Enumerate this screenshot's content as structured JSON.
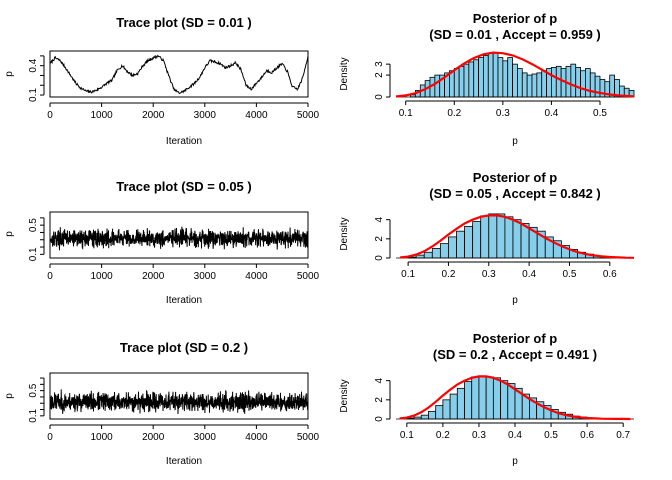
{
  "chart_data": [
    {
      "type": "line",
      "title": "Trace plot (SD = 0.01 )",
      "xlabel": "Iteration",
      "ylabel": "p",
      "xlim": [
        0,
        5000
      ],
      "ylim": [
        0.08,
        0.55
      ],
      "xticks": [
        0,
        1000,
        2000,
        3000,
        4000,
        5000
      ],
      "yticks": [
        0.1,
        0.4
      ],
      "yticks_minor": [
        0.1,
        0.2,
        0.3,
        0.4,
        0.5
      ],
      "ytick_labels": [
        "0.1",
        "0.4"
      ],
      "sd": 0.01,
      "series": [
        {
          "x": [
            0,
            100,
            200,
            300,
            400,
            500,
            600,
            700,
            800,
            900,
            1000,
            1100,
            1200,
            1300,
            1400,
            1500,
            1600,
            1700,
            1800,
            1900,
            2000,
            2100,
            2200,
            2300,
            2400,
            2500,
            2600,
            2700,
            2800,
            2900,
            3000,
            3100,
            3200,
            3300,
            3400,
            3500,
            3600,
            3700,
            3800,
            3900,
            4000,
            4100,
            4200,
            4300,
            4400,
            4500,
            4600,
            4700,
            4800,
            4900,
            5000
          ],
          "values": [
            0.42,
            0.48,
            0.45,
            0.38,
            0.3,
            0.22,
            0.17,
            0.14,
            0.13,
            0.15,
            0.18,
            0.22,
            0.25,
            0.35,
            0.4,
            0.34,
            0.3,
            0.32,
            0.4,
            0.45,
            0.48,
            0.5,
            0.45,
            0.3,
            0.16,
            0.12,
            0.14,
            0.18,
            0.22,
            0.28,
            0.38,
            0.45,
            0.44,
            0.42,
            0.38,
            0.4,
            0.43,
            0.36,
            0.2,
            0.16,
            0.22,
            0.28,
            0.35,
            0.33,
            0.38,
            0.42,
            0.34,
            0.18,
            0.16,
            0.28,
            0.5
          ]
        }
      ]
    },
    {
      "type": "bar",
      "title": "Posterior of p",
      "subtitle": "(SD = 0.01 , Accept = 0.959 )",
      "xlabel": "p",
      "ylabel": "Density",
      "xlim": [
        0.08,
        0.57
      ],
      "ylim": [
        0,
        4.2
      ],
      "xticks": [
        0.1,
        0.2,
        0.3,
        0.4,
        0.5
      ],
      "yticks": [
        0,
        2,
        3
      ],
      "ytick_labels": [
        "0",
        "2",
        "3"
      ],
      "bin_edges_start": 0.11,
      "bin_width": 0.01,
      "sd": 0.01,
      "accept": 0.959,
      "values": [
        0.2,
        0.6,
        1.1,
        1.5,
        1.8,
        2.0,
        2.0,
        2.2,
        2.4,
        2.6,
        2.8,
        3.0,
        3.2,
        3.4,
        3.6,
        3.8,
        4.0,
        4.0,
        3.6,
        3.3,
        3.6,
        3.0,
        2.6,
        2.2,
        2.0,
        2.1,
        2.2,
        2.4,
        2.6,
        2.7,
        2.8,
        2.6,
        2.8,
        3.0,
        2.7,
        2.4,
        2.6,
        2.2,
        1.9,
        1.6,
        1.4,
        2.0,
        1.6,
        1.0,
        0.8,
        0.6
      ],
      "density_curve": {
        "color": "#ff0000",
        "x": [
          0.08,
          0.1,
          0.12,
          0.14,
          0.16,
          0.18,
          0.2,
          0.22,
          0.24,
          0.26,
          0.28,
          0.3,
          0.32,
          0.34,
          0.36,
          0.38,
          0.4,
          0.42,
          0.44,
          0.46,
          0.48,
          0.5,
          0.52,
          0.54,
          0.56,
          0.57
        ],
        "y": [
          0.05,
          0.15,
          0.35,
          0.7,
          1.2,
          1.8,
          2.45,
          3.05,
          3.55,
          3.9,
          4.05,
          4.0,
          3.8,
          3.45,
          3.0,
          2.5,
          2.0,
          1.55,
          1.15,
          0.8,
          0.55,
          0.37,
          0.23,
          0.14,
          0.08,
          0.06
        ]
      },
      "bar_color": "#87ceeb"
    },
    {
      "type": "line",
      "title": "Trace plot (SD = 0.05 )",
      "xlabel": "Iteration",
      "ylabel": "p",
      "xlim": [
        0,
        5000
      ],
      "ylim": [
        0.05,
        0.68
      ],
      "xticks": [
        0,
        1000,
        2000,
        3000,
        4000,
        5000
      ],
      "yticks": [
        0.1,
        0.5
      ],
      "yticks_minor": [
        0.1,
        0.2,
        0.3,
        0.4,
        0.5,
        0.6
      ],
      "ytick_labels": [
        "0.1",
        "0.5"
      ],
      "sd": 0.05,
      "series": [
        {
          "noise_center": 0.32,
          "noise_spread": 0.1,
          "n_points": 1200
        }
      ]
    },
    {
      "type": "bar",
      "title": "Posterior of p",
      "subtitle": "(SD = 0.05 , Accept = 0.842 )",
      "xlabel": "p",
      "ylabel": "Density",
      "xlim": [
        0.07,
        0.66
      ],
      "ylim": [
        0,
        4.8
      ],
      "xticks": [
        0.1,
        0.2,
        0.3,
        0.4,
        0.5,
        0.6
      ],
      "yticks": [
        0,
        2,
        4
      ],
      "ytick_labels": [
        "0",
        "2",
        "4"
      ],
      "bin_edges_start": 0.1,
      "bin_width": 0.02,
      "sd": 0.05,
      "accept": 0.842,
      "values": [
        0.1,
        0.3,
        0.6,
        1.0,
        1.5,
        2.2,
        2.8,
        3.3,
        3.8,
        4.4,
        4.6,
        4.6,
        4.3,
        4.0,
        3.6,
        3.2,
        2.8,
        2.2,
        1.8,
        1.3,
        0.9,
        0.6,
        0.4,
        0.2,
        0.15,
        0.1
      ],
      "density_curve": {
        "color": "#ff0000",
        "x": [
          0.08,
          0.1,
          0.12,
          0.14,
          0.16,
          0.18,
          0.2,
          0.22,
          0.24,
          0.26,
          0.28,
          0.3,
          0.32,
          0.34,
          0.36,
          0.38,
          0.4,
          0.42,
          0.44,
          0.46,
          0.48,
          0.5,
          0.52,
          0.54,
          0.56,
          0.58,
          0.6,
          0.62,
          0.64,
          0.66
        ],
        "y": [
          0.05,
          0.15,
          0.35,
          0.7,
          1.2,
          1.8,
          2.45,
          3.05,
          3.6,
          4.0,
          4.3,
          4.45,
          4.45,
          4.3,
          4.0,
          3.6,
          3.1,
          2.6,
          2.1,
          1.65,
          1.25,
          0.9,
          0.62,
          0.42,
          0.27,
          0.17,
          0.1,
          0.06,
          0.03,
          0.02
        ]
      },
      "bar_color": "#87ceeb"
    },
    {
      "type": "line",
      "title": "Trace plot (SD = 0.2 )",
      "xlabel": "Iteration",
      "ylabel": "p",
      "xlim": [
        0,
        5000
      ],
      "ylim": [
        0.05,
        0.78
      ],
      "xticks": [
        0,
        1000,
        2000,
        3000,
        4000,
        5000
      ],
      "yticks": [
        0.1,
        0.5
      ],
      "yticks_minor": [
        0.1,
        0.2,
        0.3,
        0.4,
        0.5,
        0.6,
        0.7
      ],
      "ytick_labels": [
        "0.1",
        "0.5"
      ],
      "sd": 0.2,
      "series": [
        {
          "noise_center": 0.32,
          "noise_spread": 0.12,
          "n_points": 1400
        }
      ]
    },
    {
      "type": "bar",
      "title": "Posterior of p",
      "subtitle": "(SD = 0.2 , Accept = 0.491 )",
      "xlabel": "p",
      "ylabel": "Density",
      "xlim": [
        0.07,
        0.73
      ],
      "ylim": [
        0,
        4.8
      ],
      "xticks": [
        0.1,
        0.2,
        0.3,
        0.4,
        0.5,
        0.6,
        0.7
      ],
      "yticks": [
        0,
        2,
        4
      ],
      "ytick_labels": [
        "0",
        "2",
        "4"
      ],
      "bin_edges_start": 0.1,
      "bin_width": 0.02,
      "sd": 0.2,
      "accept": 0.491,
      "values": [
        0.1,
        0.2,
        0.4,
        0.8,
        1.4,
        2.0,
        2.6,
        3.2,
        3.9,
        4.4,
        4.5,
        4.4,
        4.3,
        4.0,
        3.7,
        3.2,
        2.6,
        2.2,
        1.8,
        1.4,
        1.0,
        0.7,
        0.5,
        0.3,
        0.2,
        0.1,
        0.05,
        0.05
      ],
      "density_curve": {
        "color": "#ff0000",
        "x": [
          0.08,
          0.1,
          0.12,
          0.14,
          0.16,
          0.18,
          0.2,
          0.22,
          0.24,
          0.26,
          0.28,
          0.3,
          0.32,
          0.34,
          0.36,
          0.38,
          0.4,
          0.42,
          0.44,
          0.46,
          0.48,
          0.5,
          0.52,
          0.54,
          0.56,
          0.58,
          0.6,
          0.62,
          0.64,
          0.66,
          0.68,
          0.7,
          0.72
        ],
        "y": [
          0.05,
          0.15,
          0.35,
          0.7,
          1.2,
          1.8,
          2.45,
          3.05,
          3.6,
          4.0,
          4.3,
          4.45,
          4.45,
          4.3,
          4.0,
          3.6,
          3.1,
          2.6,
          2.1,
          1.65,
          1.25,
          0.9,
          0.62,
          0.42,
          0.27,
          0.17,
          0.1,
          0.06,
          0.03,
          0.02,
          0.01,
          0.01,
          0.0
        ]
      },
      "bar_color": "#87ceeb"
    }
  ]
}
